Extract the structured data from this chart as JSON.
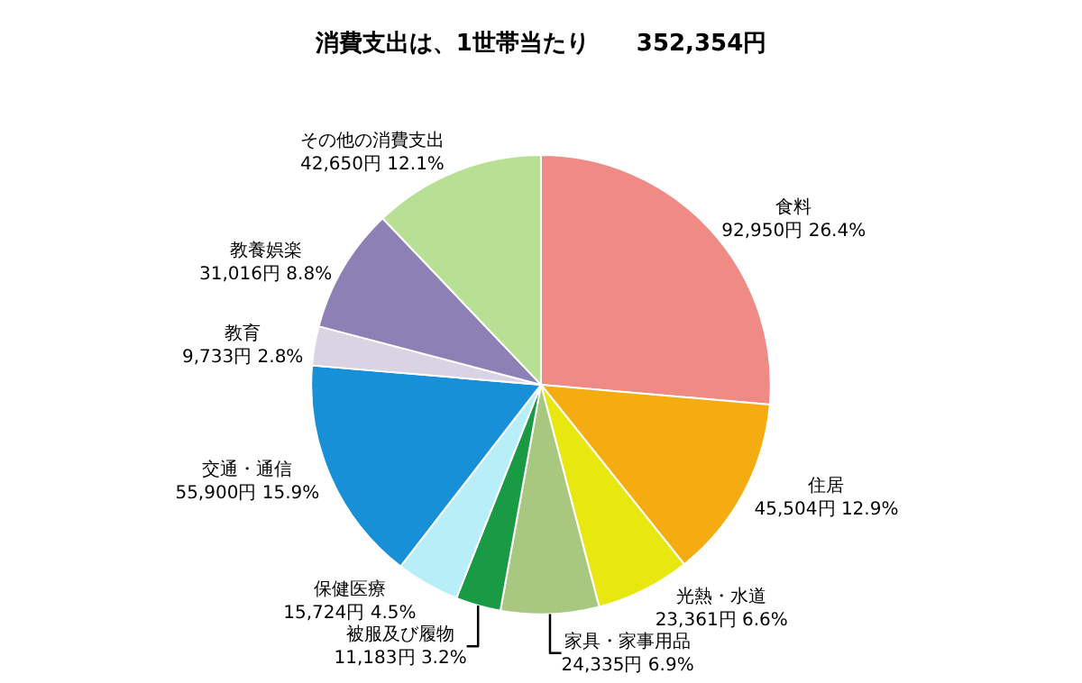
{
  "chart_data": {
    "type": "pie",
    "title": "消費支出は、1世帯当たり　　352,354円",
    "categories": [
      "食料",
      "住居",
      "光熱・水道",
      "家具・家事用品",
      "被服及び履物",
      "保健医療",
      "交通・通信",
      "教育",
      "教養娯楽",
      "その他の消費支出"
    ],
    "values": [
      92950,
      45504,
      23361,
      24335,
      11183,
      15724,
      55900,
      9733,
      31016,
      42650
    ],
    "value_labels": [
      "92,950円 26.4%",
      "45,504円 12.9%",
      "23,361円 6.6%",
      "24,335円 6.9%",
      "11,183円 3.2%",
      "15,724円 4.5%",
      "55,900円 15.9%",
      "9,733円 2.8%",
      "31,016円 8.8%",
      "42,650円 12.1%"
    ],
    "colors": [
      "#f08a84",
      "#f5ac10",
      "#e8e810",
      "#a8c880",
      "#1a9a44",
      "#b8eef8",
      "#1890d8",
      "#d8d4e4",
      "#8c80b4",
      "#b8e094"
    ],
    "legend": false
  }
}
